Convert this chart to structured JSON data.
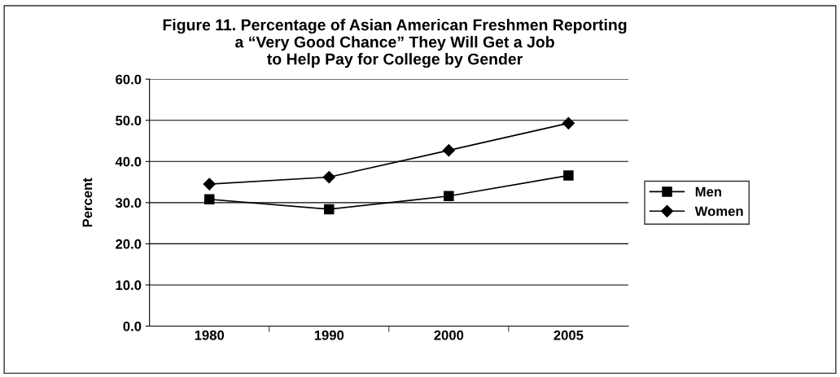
{
  "chart_data": {
    "type": "line",
    "title": "Figure 11. Percentage of Asian American Freshmen Reporting\na “Very Good Chance” They Will Get a Job\nto Help Pay for College by Gender",
    "ylabel": "Percent",
    "categories": [
      "1980",
      "1990",
      "2000",
      "2005"
    ],
    "series": [
      {
        "name": "Men",
        "color": "#000000",
        "marker": "square",
        "values": [
          30.8,
          28.4,
          31.6,
          36.6
        ]
      },
      {
        "name": "Women",
        "color": "#000000",
        "marker": "diamond",
        "values": [
          34.5,
          36.2,
          42.7,
          49.3
        ]
      }
    ],
    "ylim": [
      0,
      60
    ],
    "yticks": [
      {
        "value": 0,
        "label": "0.0"
      },
      {
        "value": 10,
        "label": "10.0"
      },
      {
        "value": 20,
        "label": "20.0"
      },
      {
        "value": 30,
        "label": "30.0"
      },
      {
        "value": 40,
        "label": "40.0"
      },
      {
        "value": 50,
        "label": "50.0"
      },
      {
        "value": 60,
        "label": "60.0"
      }
    ],
    "grid": "y",
    "legend": "right",
    "line_style": "solid"
  }
}
